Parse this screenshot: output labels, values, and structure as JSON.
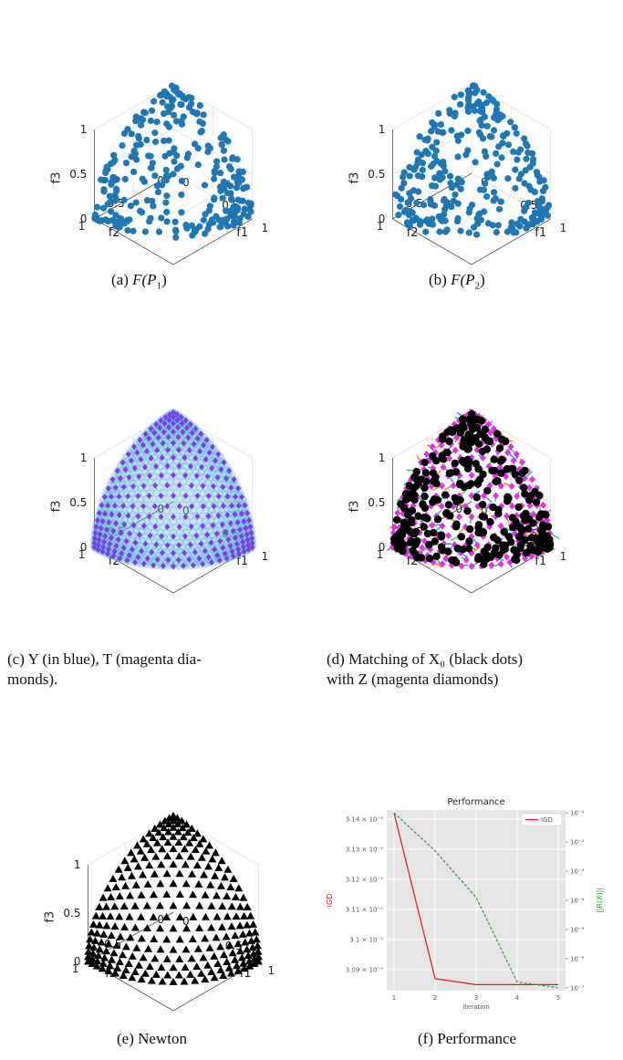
{
  "captions": {
    "a": {
      "prefix": "(a) ",
      "math": "F(P",
      "sub": "1",
      "suffix": ")"
    },
    "b": {
      "prefix": "(b) ",
      "math": "F(P",
      "sub": "2",
      "suffix": ")"
    },
    "c": {
      "line1": "(c)  Y  (in blue), T (magenta dia-",
      "line2": "monds)."
    },
    "d": {
      "line1": "(d) Matching of X₀ (black dots)",
      "line2": "with Z (magenta diamonds)"
    },
    "e": {
      "text": "(e) Newton"
    },
    "f": {
      "text": "(f) Performance"
    }
  },
  "axes3d": {
    "f1_label": "f",
    "f1_sub": "1",
    "f2_label": "f",
    "f2_sub": "2",
    "f3_label": "f",
    "f3_sub": "3",
    "ticks_f3": [
      "0",
      "0.5",
      "1"
    ],
    "ticks_f2": [
      "0",
      "0.5",
      "1"
    ],
    "ticks_f1": [
      "0",
      "0.5",
      "1"
    ]
  },
  "colors": {
    "blue_dots": "#1f77b4",
    "light_blue": "#5fb3de",
    "magenta": "#e62ee6",
    "purple": "#7b3fe4",
    "black": "#000000",
    "igd_red": "#e41a1c",
    "res_green": "#2ca02c"
  },
  "chart_data": [
    {
      "id": "a",
      "type": "scatter",
      "title": "",
      "xlabel": "f1",
      "ylabel": "f2",
      "zlabel": "f3",
      "xlim": [
        0,
        1
      ],
      "ylim": [
        0,
        1
      ],
      "zlim": [
        0,
        1
      ],
      "marker": "dot",
      "n_points": 300,
      "distribution": "random points on the unit sphere octant"
    },
    {
      "id": "b",
      "type": "scatter",
      "title": "",
      "xlabel": "f1",
      "ylabel": "f2",
      "zlabel": "f3",
      "xlim": [
        0,
        1
      ],
      "ylim": [
        0,
        1
      ],
      "zlim": [
        0,
        1
      ],
      "marker": "dot",
      "n_points": 300,
      "distribution": "random points on the unit sphere octant"
    },
    {
      "id": "c",
      "type": "scatter",
      "series": [
        {
          "name": "Y",
          "marker": "blob"
        },
        {
          "name": "T",
          "marker": "diamond"
        }
      ],
      "xlim": [
        0,
        1
      ],
      "ylim": [
        0,
        1
      ],
      "zlim": [
        0,
        1
      ]
    },
    {
      "id": "d",
      "type": "scatter",
      "series": [
        {
          "name": "X0",
          "marker": "dot"
        },
        {
          "name": "Z",
          "marker": "diamond"
        }
      ],
      "xlim": [
        0,
        1
      ],
      "ylim": [
        0,
        1
      ],
      "zlim": [
        0,
        1
      ]
    },
    {
      "id": "e",
      "type": "scatter",
      "series": [
        {
          "name": "Newton",
          "marker": "triangle"
        }
      ],
      "xlim": [
        0,
        1
      ],
      "ylim": [
        0,
        1
      ],
      "zlim": [
        0,
        1
      ]
    },
    {
      "id": "f",
      "type": "line",
      "title": "Performance",
      "xlabel": "iteration",
      "ylabel": "IGD",
      "y2label": "||R(X)||",
      "x": [
        1,
        2,
        3,
        4,
        5
      ],
      "y_ticks": [
        "3.14 × 10⁻²",
        "3.13 × 10⁻²",
        "3.12 × 10⁻²",
        "3.11 × 10⁻²",
        "3.1 × 10⁻²",
        "3.09 × 10⁻²"
      ],
      "y_tick_values": [
        0.0314,
        0.0313,
        0.0312,
        0.0311,
        0.031,
        0.0309
      ],
      "y2_ticks": [
        "10⁻¹",
        "10⁻²",
        "10⁻³",
        "10⁻⁴",
        "10⁻⁵",
        "10⁻⁶",
        "10⁻⁷"
      ],
      "y2_tick_exponents": [
        -1,
        -2,
        -3,
        -4,
        -5,
        -6,
        -7
      ],
      "x_ticks": [
        "1",
        "2",
        "3",
        "4",
        "5"
      ],
      "ylim": [
        0.03083,
        0.03143
      ],
      "y2lim_exp": [
        -7.1,
        -0.9
      ],
      "series": [
        {
          "name": "IGD",
          "axis": "left",
          "values": [
            0.03142,
            0.03087,
            0.03085,
            0.03085,
            0.03085
          ]
        },
        {
          "name": "",
          "axis": "right",
          "exponents": [
            -1,
            -2.3,
            -3.9,
            -6.8,
            -7
          ]
        }
      ],
      "legend": "top-right",
      "grid": true
    }
  ]
}
